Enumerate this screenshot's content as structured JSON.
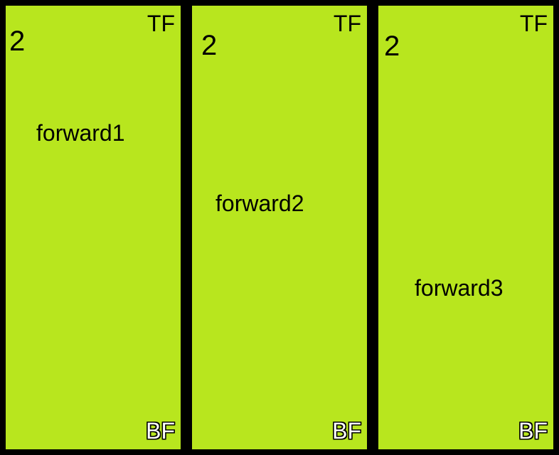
{
  "panels": [
    {
      "number": "2",
      "top_label": "TF",
      "bottom_label": "BF",
      "name": "forward1"
    },
    {
      "number": "2",
      "top_label": "TF",
      "bottom_label": "BF",
      "name": "forward2"
    },
    {
      "number": "2",
      "top_label": "TF",
      "bottom_label": "BF",
      "name": "forward3"
    }
  ],
  "colors": {
    "background": "#000000",
    "panel": "#b8e61e"
  }
}
